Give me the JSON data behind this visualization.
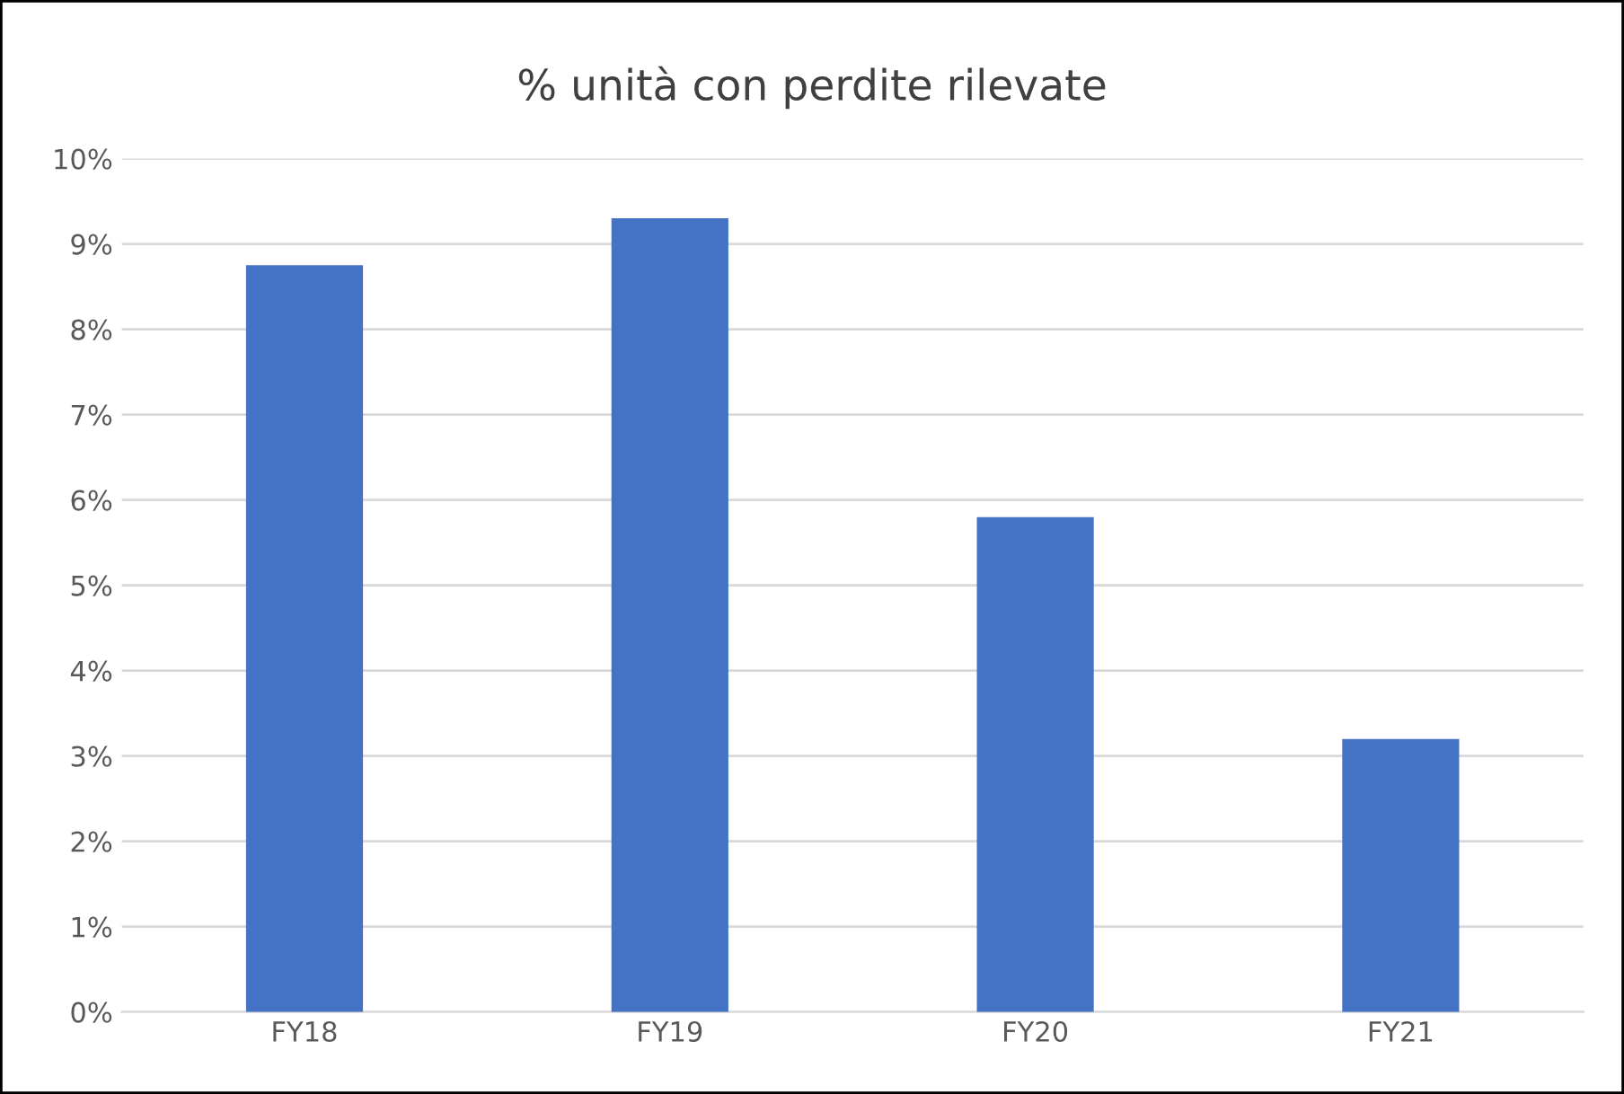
{
  "chart_data": {
    "type": "bar",
    "title": "% unità con perdite rilevate",
    "categories": [
      "FY18",
      "FY19",
      "FY20",
      "FY21"
    ],
    "values": [
      8.75,
      9.3,
      5.8,
      3.2
    ],
    "color": "#4472c4",
    "ylim": [
      0,
      10
    ],
    "yticks": [
      {
        "value": 0,
        "label": "0%"
      },
      {
        "value": 1,
        "label": "1%"
      },
      {
        "value": 2,
        "label": "2%"
      },
      {
        "value": 3,
        "label": "3%"
      },
      {
        "value": 4,
        "label": "4%"
      },
      {
        "value": 5,
        "label": "5%"
      },
      {
        "value": 6,
        "label": "6%"
      },
      {
        "value": 7,
        "label": "7%"
      },
      {
        "value": 8,
        "label": "8%"
      },
      {
        "value": 9,
        "label": "9%"
      },
      {
        "value": 10,
        "label": "10%"
      }
    ],
    "grid": "y",
    "legend": false
  }
}
